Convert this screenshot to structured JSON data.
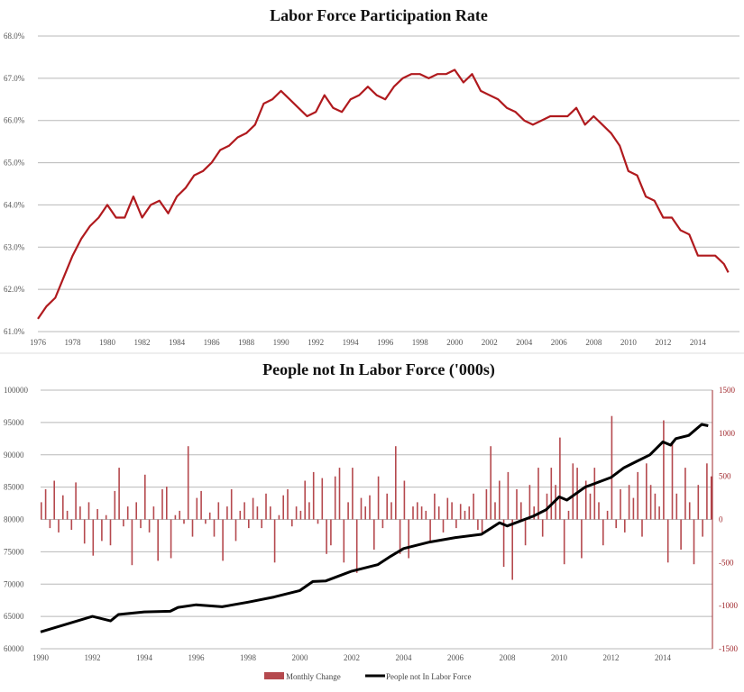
{
  "chart_data": [
    {
      "type": "line",
      "title": "Labor Force Participation Rate",
      "xlabel": "",
      "ylabel": "",
      "xlim": [
        1976,
        2015.75
      ],
      "ylim": [
        61,
        68
      ],
      "x_ticks": [
        "1976",
        "1978",
        "1980",
        "1982",
        "1984",
        "1986",
        "1988",
        "1990",
        "1992",
        "1994",
        "1996",
        "1998",
        "2000",
        "2002",
        "2004",
        "2006",
        "2008",
        "2010",
        "2012",
        "2014"
      ],
      "y_ticks": [
        "61.0%",
        "62.0%",
        "63.0%",
        "64.0%",
        "65.0%",
        "66.0%",
        "67.0%",
        "68.0%"
      ],
      "grid": true,
      "color": "#b01a1e",
      "series": [
        {
          "name": "Labor Force Participation Rate",
          "x": [
            1976,
            1976.5,
            1977,
            1977.5,
            1978,
            1978.5,
            1979,
            1979.5,
            1980,
            1980.5,
            1981,
            1981.5,
            1982,
            1982.5,
            1983,
            1983.5,
            1984,
            1984.5,
            1985,
            1985.5,
            1986,
            1986.5,
            1987,
            1987.5,
            1988,
            1988.5,
            1989,
            1989.5,
            1990,
            1990.5,
            1991,
            1991.5,
            1992,
            1992.5,
            1993,
            1993.5,
            1994,
            1994.5,
            1995,
            1995.5,
            1996,
            1996.5,
            1997,
            1997.5,
            1998,
            1998.5,
            1999,
            1999.5,
            2000,
            2000.5,
            2001,
            2001.5,
            2002,
            2002.5,
            2003,
            2003.5,
            2004,
            2004.5,
            2005,
            2005.5,
            2006,
            2006.5,
            2007,
            2007.5,
            2008,
            2008.5,
            2009,
            2009.5,
            2010,
            2010.5,
            2011,
            2011.5,
            2012,
            2012.5,
            2013,
            2013.5,
            2014,
            2014.5,
            2015,
            2015.5,
            2015.75
          ],
          "values": [
            61.3,
            61.6,
            61.8,
            62.3,
            62.8,
            63.2,
            63.5,
            63.7,
            64.0,
            63.7,
            63.7,
            64.2,
            63.7,
            64.0,
            64.1,
            63.8,
            64.2,
            64.4,
            64.7,
            64.8,
            65.0,
            65.3,
            65.4,
            65.6,
            65.7,
            65.9,
            66.4,
            66.5,
            66.7,
            66.5,
            66.3,
            66.1,
            66.2,
            66.6,
            66.3,
            66.2,
            66.5,
            66.6,
            66.8,
            66.6,
            66.5,
            66.8,
            67.0,
            67.1,
            67.1,
            67.0,
            67.1,
            67.1,
            67.2,
            66.9,
            67.1,
            66.7,
            66.6,
            66.5,
            66.3,
            66.2,
            66.0,
            65.9,
            66.0,
            66.1,
            66.1,
            66.1,
            66.3,
            65.9,
            66.1,
            65.9,
            65.7,
            65.4,
            64.8,
            64.7,
            64.2,
            64.1,
            63.7,
            63.7,
            63.4,
            63.3,
            62.8,
            62.8,
            62.8,
            62.6,
            62.4
          ]
        }
      ]
    },
    {
      "type": "bar+line",
      "title": "People not In Labor Force ('000s)",
      "xlim": [
        1990,
        2015.83
      ],
      "ylim_left": [
        60000,
        100000
      ],
      "ylim_right": [
        -1500,
        1500
      ],
      "x_ticks": [
        "1990",
        "1992",
        "1994",
        "1996",
        "1998",
        "2000",
        "2002",
        "2004",
        "2006",
        "2008",
        "2010",
        "2012",
        "2014"
      ],
      "y_ticks_left": [
        "60000",
        "65000",
        "70000",
        "75000",
        "80000",
        "85000",
        "90000",
        "95000",
        "100000"
      ],
      "y_ticks_right": [
        "-1500",
        "-1000",
        "-500",
        "0",
        "500",
        "1000",
        "1500"
      ],
      "grid": true,
      "legend_position": "bottom",
      "bar_color": "#b5494e",
      "line_color": "#000000",
      "series": [
        {
          "name": "Monthly Change",
          "axis": "right",
          "x_start": 1990,
          "x_step": 0.1667,
          "values": [
            200,
            350,
            -100,
            450,
            -150,
            280,
            100,
            -120,
            430,
            150,
            -280,
            200,
            -420,
            120,
            -250,
            50,
            -300,
            330,
            600,
            -80,
            150,
            -530,
            200,
            -100,
            520,
            -150,
            150,
            -480,
            350,
            380,
            -450,
            50,
            100,
            -50,
            850,
            -200,
            250,
            330,
            -50,
            80,
            -200,
            200,
            -480,
            150,
            350,
            -250,
            100,
            200,
            -100,
            250,
            150,
            -100,
            300,
            150,
            -500,
            50,
            280,
            350,
            -80,
            150,
            100,
            450,
            200,
            550,
            -50,
            480,
            -400,
            -300,
            500,
            600,
            -500,
            200,
            600,
            -620,
            250,
            150,
            280,
            -350,
            500,
            -100,
            300,
            200,
            850,
            -400,
            450,
            -450,
            150,
            200,
            150,
            100,
            -250,
            300,
            150,
            -150,
            250,
            200,
            -100,
            180,
            100,
            150,
            300,
            -120,
            -150,
            350,
            850,
            200,
            450,
            -550,
            550,
            -700,
            350,
            200,
            -300,
            400,
            150,
            600,
            -200,
            300,
            600,
            400,
            950,
            -520,
            100,
            650,
            600,
            -450,
            450,
            300,
            600,
            200,
            -300,
            100,
            1200,
            -100,
            350,
            -150,
            400,
            250,
            550,
            -200,
            650,
            400,
            300,
            150,
            1150,
            -500,
            900,
            300,
            -350,
            600,
            200,
            -520,
            400,
            -200,
            650,
            500
          ]
        },
        {
          "name": "People not In Labor Force",
          "axis": "left",
          "x": [
            1990,
            1991,
            1992,
            1992.7,
            1993,
            1994,
            1995,
            1995.3,
            1996,
            1997,
            1998,
            1999,
            2000,
            2000.5,
            2001,
            2002,
            2003,
            2003.5,
            2004,
            2005,
            2006,
            2007,
            2007.7,
            2008,
            2009,
            2009.5,
            2010,
            2010.3,
            2011,
            2012,
            2012.5,
            2013,
            2013.5,
            2014,
            2014.3,
            2014.5,
            2015,
            2015.5,
            2015.75
          ],
          "values": [
            62600,
            63800,
            65000,
            64300,
            65300,
            65700,
            65800,
            66400,
            66800,
            66500,
            67200,
            68000,
            69000,
            70400,
            70500,
            72000,
            73000,
            74300,
            75500,
            76500,
            77200,
            77700,
            79500,
            79000,
            80500,
            81500,
            83500,
            83000,
            85000,
            86500,
            88000,
            89000,
            90000,
            92000,
            91500,
            92500,
            93000,
            94700,
            94500
          ]
        }
      ]
    }
  ]
}
